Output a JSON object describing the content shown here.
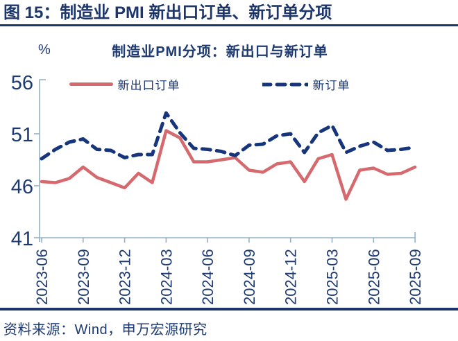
{
  "header": {
    "title": "图 15：制造业 PMI 新出口订单、新订单分项"
  },
  "chart": {
    "unit": "%",
    "title": "制造业PMI分项：新出口与新订单"
  },
  "chart_data": {
    "type": "line",
    "title": "制造业PMI分项：新出口与新订单",
    "xlabel": "",
    "ylabel": "%",
    "ylim": [
      41,
      56
    ],
    "yticks": [
      41,
      46,
      51,
      56
    ],
    "grid": false,
    "legend_position": "top",
    "x": [
      "2023-06",
      "2023-07",
      "2023-08",
      "2023-09",
      "2023-10",
      "2023-11",
      "2023-12",
      "2024-01",
      "2024-02",
      "2024-03",
      "2024-04",
      "2024-05",
      "2024-06",
      "2024-07",
      "2024-08",
      "2024-09",
      "2024-10",
      "2024-11",
      "2024-12",
      "2025-01",
      "2025-02",
      "2025-03",
      "2025-04",
      "2025-05",
      "2025-06",
      "2025-07",
      "2025-08",
      "2025-09"
    ],
    "xtick_labels": [
      "2023-06",
      "2023-09",
      "2023-12",
      "2024-03",
      "2024-06",
      "2024-09",
      "2024-12",
      "2025-03",
      "2025-06",
      "2025-09"
    ],
    "series": [
      {
        "name": "新出口订单",
        "style": "solid",
        "color": "#d5696d",
        "values": [
          46.4,
          46.3,
          46.7,
          47.8,
          46.8,
          46.3,
          45.8,
          47.2,
          46.3,
          51.3,
          50.6,
          48.3,
          48.3,
          48.5,
          48.7,
          47.5,
          47.3,
          48.1,
          48.3,
          46.4,
          48.6,
          49.0,
          44.7,
          47.5,
          47.7,
          47.1,
          47.2,
          47.8
        ]
      },
      {
        "name": "新订单",
        "style": "dashed",
        "color": "#16357b",
        "values": [
          48.6,
          49.5,
          50.2,
          50.5,
          49.5,
          49.4,
          48.7,
          49.0,
          49.0,
          53.0,
          51.1,
          49.6,
          49.5,
          49.3,
          48.9,
          49.9,
          50.0,
          50.8,
          51.0,
          49.2,
          51.1,
          51.8,
          49.2,
          49.8,
          50.2,
          49.4,
          49.5,
          49.7
        ]
      }
    ]
  },
  "colors": {
    "navy_text": "#1e3a73",
    "navy_dark": "#1c366b",
    "line_red": "#d5696d",
    "line_blue": "#16357b",
    "axis": "#92b0c7"
  },
  "footer": {
    "source": "资料来源：Wind，申万宏源研究"
  }
}
